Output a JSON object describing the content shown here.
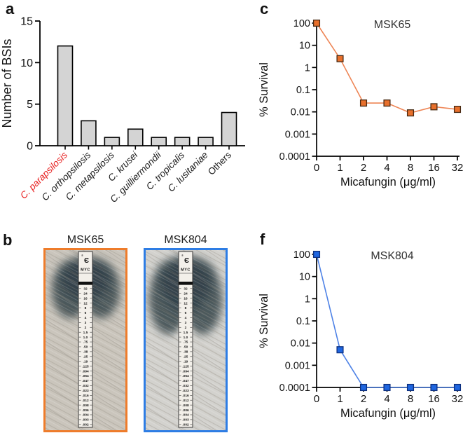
{
  "figure_title": "",
  "panel_a": {
    "letter": "a"
  },
  "panel_b": {
    "letter": "b",
    "images": [
      {
        "title": "MSK65",
        "border_color": "#ee7c2b"
      },
      {
        "title": "MSK804",
        "border_color": "#2e7de4"
      }
    ],
    "strip": {
      "brand_mark": "®",
      "brand_letter": "Є",
      "code": "MYC",
      "scale": [
        "32",
        "24",
        "16",
        "12",
        "8",
        "6",
        "4",
        "3",
        "2",
        "1.5",
        "1.0",
        ".75",
        ".50",
        ".38",
        ".25",
        ".19",
        ".125",
        ".094",
        ".064",
        ".047",
        ".032",
        ".023",
        ".016",
        ".012",
        ".008",
        ".006",
        ".004",
        ".003",
        ".002"
      ]
    }
  },
  "panel_c": {
    "letter": "c"
  },
  "panel_f": {
    "letter": "f"
  },
  "chart_data": [
    {
      "id": "a",
      "type": "bar",
      "title": "",
      "xlabel": "",
      "ylabel": "Number of BSIs",
      "ylim": [
        0,
        15
      ],
      "yticks": [
        0,
        5,
        10,
        15
      ],
      "categories": [
        {
          "label": "C. parapsilosis",
          "italic": true,
          "color": "#e82020"
        },
        {
          "label": "C. orthopsilosis",
          "italic": true
        },
        {
          "label": "C. metapsilosis",
          "italic": true
        },
        {
          "label": "C. krusei",
          "italic": true
        },
        {
          "label": "C. guilliermondii",
          "italic": true
        },
        {
          "label": "C. tropicalis",
          "italic": true
        },
        {
          "label": "C. lusitaniae",
          "italic": true
        },
        {
          "label": "Others",
          "italic": false
        }
      ],
      "values": [
        12,
        3,
        1,
        2,
        1,
        1,
        1,
        4
      ],
      "bar_fill": "#d4d4d4",
      "bar_stroke": "#000000",
      "grid": false
    },
    {
      "id": "c",
      "type": "line",
      "title": "MSK65",
      "xlabel": "Micafungin (μg/ml)",
      "ylabel": "% Survival",
      "yscale": "log",
      "ylim": [
        0.0001,
        100
      ],
      "ytick_labels": [
        "100",
        "10",
        "1",
        "0.1",
        "0.01",
        "0.001",
        "0.0001"
      ],
      "x_categories": [
        "0",
        "1",
        "2",
        "4",
        "8",
        "16",
        "32"
      ],
      "values": [
        100,
        2.5,
        0.025,
        0.025,
        0.009,
        0.017,
        0.013
      ],
      "marker": "square",
      "marker_fill": "#e8702c",
      "marker_stroke": "#472a14",
      "line_color": "#ee8555",
      "grid": false,
      "legend": "none"
    },
    {
      "id": "f",
      "type": "line",
      "title": "MSK804",
      "xlabel": "Micafungin (μg/ml)",
      "ylabel": "% Survival",
      "yscale": "log",
      "ylim": [
        0.0001,
        100
      ],
      "ytick_labels": [
        "100",
        "10",
        "1",
        "0.1",
        "0.01",
        "0.001",
        "0.0001"
      ],
      "x_categories": [
        "0",
        "1",
        "2",
        "4",
        "8",
        "16",
        "32"
      ],
      "values": [
        100,
        0.005,
        0.0001,
        0.0001,
        0.0001,
        0.0001,
        0.0001
      ],
      "marker": "square",
      "marker_fill": "#1f66e0",
      "marker_stroke": "#0d2f7d",
      "line_color": "#4e82e6",
      "grid": false,
      "legend": "none"
    }
  ]
}
